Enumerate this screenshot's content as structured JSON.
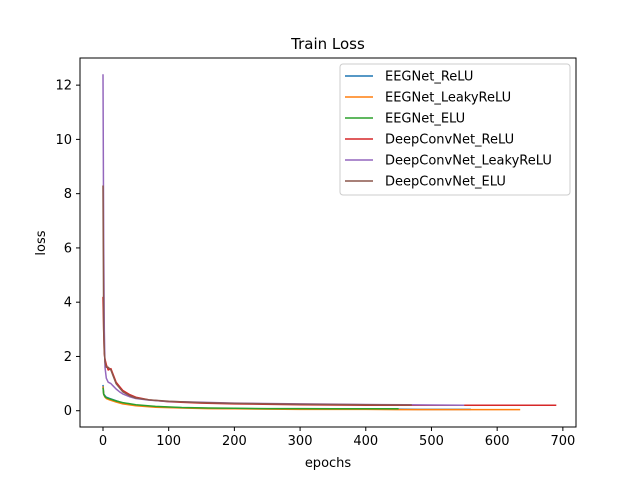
{
  "chart_data": {
    "type": "line",
    "title": "Train Loss",
    "xlabel": "epochs",
    "ylabel": "loss",
    "xlim": [
      -35,
      720
    ],
    "ylim": [
      -0.6,
      13.0
    ],
    "xticks": [
      0,
      100,
      200,
      300,
      400,
      500,
      600,
      700
    ],
    "yticks": [
      0,
      2,
      4,
      6,
      8,
      10,
      12
    ],
    "legend_position": "top-right",
    "grid": false,
    "series": [
      {
        "name": "EEGNet_ReLU",
        "color": "#1f77b4",
        "x": [
          0,
          1,
          3,
          5,
          10,
          20,
          30,
          50,
          80,
          120,
          160,
          200,
          250,
          300,
          350,
          400,
          440,
          480,
          520,
          560
        ],
        "y": [
          0.95,
          0.62,
          0.55,
          0.5,
          0.45,
          0.37,
          0.29,
          0.2,
          0.15,
          0.11,
          0.09,
          0.08,
          0.07,
          0.07,
          0.06,
          0.06,
          0.06,
          0.05,
          0.05,
          0.05
        ]
      },
      {
        "name": "EEGNet_LeakyReLU",
        "color": "#ff7f0e",
        "x": [
          0,
          1,
          3,
          5,
          10,
          20,
          30,
          50,
          80,
          120,
          160,
          200,
          250,
          300,
          350,
          400,
          450,
          500,
          550,
          600,
          635
        ],
        "y": [
          0.9,
          0.6,
          0.5,
          0.45,
          0.4,
          0.32,
          0.25,
          0.18,
          0.13,
          0.1,
          0.08,
          0.07,
          0.06,
          0.05,
          0.05,
          0.05,
          0.04,
          0.04,
          0.04,
          0.04,
          0.04
        ]
      },
      {
        "name": "EEGNet_ELU",
        "color": "#2ca02c",
        "x": [
          0,
          1,
          3,
          5,
          10,
          20,
          30,
          50,
          80,
          120,
          160,
          200,
          250,
          300,
          350,
          400,
          450
        ],
        "y": [
          0.85,
          0.6,
          0.52,
          0.48,
          0.44,
          0.36,
          0.3,
          0.22,
          0.16,
          0.12,
          0.1,
          0.09,
          0.08,
          0.08,
          0.07,
          0.07,
          0.07
        ]
      },
      {
        "name": "DeepConvNet_ReLU",
        "color": "#d62728",
        "x": [
          0,
          1,
          2,
          3,
          5,
          8,
          12,
          16,
          20,
          25,
          30,
          40,
          50,
          70,
          100,
          150,
          200,
          300,
          400,
          500,
          600,
          690
        ],
        "y": [
          4.2,
          2.9,
          2.1,
          1.9,
          1.7,
          1.5,
          1.55,
          1.3,
          1.05,
          0.9,
          0.75,
          0.6,
          0.5,
          0.4,
          0.33,
          0.28,
          0.25,
          0.22,
          0.2,
          0.2,
          0.2,
          0.2
        ]
      },
      {
        "name": "DeepConvNet_LeakyReLU",
        "color": "#9467bd",
        "x": [
          0,
          1,
          2,
          3,
          5,
          8,
          12,
          16,
          20,
          25,
          30,
          40,
          50,
          70,
          100,
          150,
          200,
          300,
          400,
          460,
          500,
          550
        ],
        "y": [
          12.4,
          6.0,
          3.0,
          1.6,
          1.2,
          1.05,
          1.0,
          0.9,
          0.8,
          0.7,
          0.62,
          0.52,
          0.45,
          0.39,
          0.34,
          0.31,
          0.28,
          0.25,
          0.23,
          0.22,
          0.21,
          0.2
        ]
      },
      {
        "name": "DeepConvNet_ELU",
        "color": "#8c564b",
        "x": [
          0,
          1,
          2,
          3,
          5,
          8,
          12,
          16,
          20,
          25,
          30,
          40,
          50,
          70,
          100,
          150,
          200,
          300,
          400,
          470
        ],
        "y": [
          8.3,
          3.0,
          2.2,
          1.8,
          1.6,
          1.6,
          1.5,
          1.25,
          1.0,
          0.85,
          0.7,
          0.56,
          0.47,
          0.4,
          0.35,
          0.3,
          0.27,
          0.24,
          0.22,
          0.21
        ]
      }
    ]
  }
}
